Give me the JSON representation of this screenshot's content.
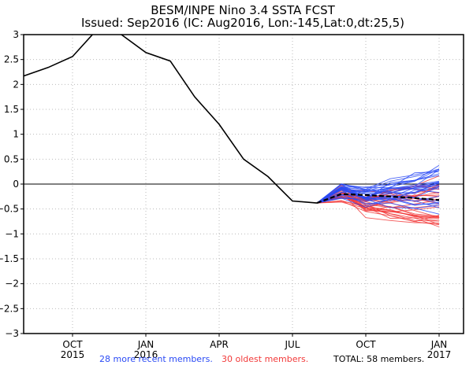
{
  "chart_data": {
    "type": "line",
    "title": "BESM/INPE Nino 3.4 SSTA FCST",
    "subtitle": "Issued: Sep2016 (IC: Aug2016, Lon:-145,Lat:0,dt:25,5)",
    "xlabel": "",
    "ylabel": "",
    "ylim": [
      -3,
      3
    ],
    "yticks": [
      3,
      2.5,
      2,
      1.5,
      1,
      0.5,
      0,
      -0.5,
      -1,
      -1.5,
      -2,
      -2.5,
      -3
    ],
    "ytick_labels": [
      "3",
      "2.5",
      "2",
      "1.5",
      "1",
      "0.5",
      "0",
      "−0.5",
      "−1",
      "−1.5",
      "−2",
      "−2.5",
      "−3"
    ],
    "x_months": [
      "Aug2015",
      "Sep2015",
      "Oct2015",
      "Nov2015",
      "Dec2015",
      "Jan2016",
      "Feb2016",
      "Mar2016",
      "Apr2016",
      "May2016",
      "Jun2016",
      "Jul2016",
      "Aug2016",
      "Sep2016",
      "Oct2016",
      "Nov2016",
      "Dec2016",
      "Jan2017"
    ],
    "xlim_month_index": [
      0,
      18.1
    ],
    "xticks": [
      {
        "index": 2,
        "label": "OCT",
        "year": "2015"
      },
      {
        "index": 5,
        "label": "JAN",
        "year": "2016"
      },
      {
        "index": 8,
        "label": "APR",
        "year": ""
      },
      {
        "index": 11,
        "label": "JUL",
        "year": ""
      },
      {
        "index": 14,
        "label": "OCT",
        "year": ""
      },
      {
        "index": 17,
        "label": "JAN",
        "year": "2017"
      }
    ],
    "grid": true,
    "observed": {
      "name": "Observed",
      "color": "#000000",
      "values": [
        2.17,
        2.34,
        2.56,
        3.1,
        3.0,
        2.64,
        2.47,
        1.75,
        1.2,
        0.5,
        0.15,
        -0.34,
        -0.38
      ]
    },
    "ensemble_mean": {
      "name": "Ensemble mean",
      "color": "#000000",
      "start_index": 12,
      "values": [
        -0.38,
        -0.2,
        -0.22,
        -0.25,
        -0.28,
        -0.32
      ]
    },
    "ensemble_groups": [
      {
        "name": "28 more recent members",
        "count": 28,
        "color": "#2a4af5",
        "start_index": 12,
        "spread_end": [
          -0.6,
          0.3
        ]
      },
      {
        "name": "30 oldest members",
        "count": 30,
        "color": "#f23a3a",
        "start_index": 12,
        "spread_end": [
          -0.95,
          0.1
        ]
      }
    ],
    "zero_line": 0
  },
  "footer": {
    "recent_label": "28 more recent members.",
    "oldest_label": "30 oldest members.",
    "total_label": "TOTAL: 58 members.",
    "recent_color": "#2a4af5",
    "oldest_color": "#f23a3a"
  }
}
